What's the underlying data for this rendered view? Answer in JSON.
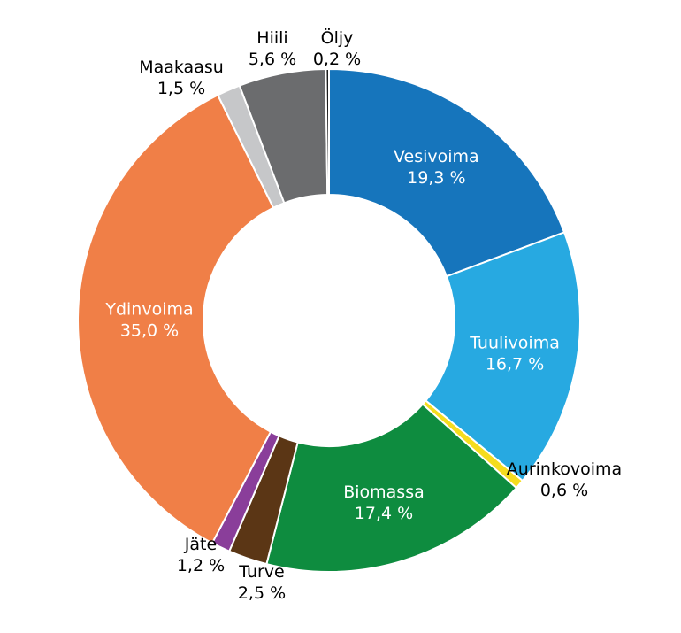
{
  "chart_data": {
    "type": "pie",
    "variant": "donut",
    "title": "",
    "categories": [
      "Vesivoima",
      "Tuulivoima",
      "Aurinkovoima",
      "Biomassa",
      "Turve",
      "Jäte",
      "Ydinvoima",
      "Maakaasu",
      "Hiili",
      "Öljy"
    ],
    "values": [
      19.3,
      16.7,
      0.6,
      17.4,
      2.5,
      1.2,
      35.0,
      1.5,
      5.6,
      0.2
    ],
    "value_labels": [
      "19,3 %",
      "16,7 %",
      "0,6 %",
      "17,4 %",
      "2,5 %",
      "1,2 %",
      "35,0 %",
      "1,5 %",
      "5,6 %",
      "0,2 %"
    ],
    "colors": [
      "#1675bc",
      "#27a9e1",
      "#f5dc1e",
      "#0e8c3f",
      "#5b3615",
      "#8a3e9a",
      "#f07f47",
      "#c6c7c9",
      "#6b6c6e",
      "#1c1c1c"
    ],
    "label_inside": [
      true,
      true,
      false,
      true,
      false,
      false,
      true,
      false,
      false,
      false
    ],
    "legend": "none"
  }
}
